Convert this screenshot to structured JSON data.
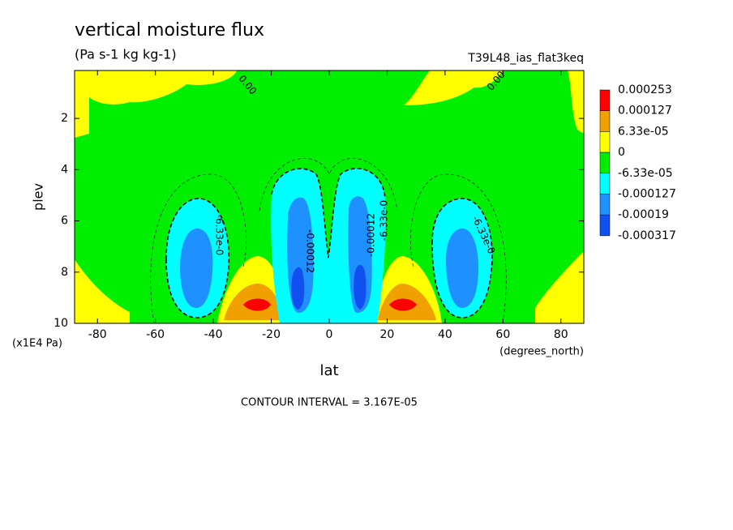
{
  "chart_data": {
    "type": "contour",
    "title": "vertical moisture flux",
    "subtitle": "(Pa s-1 kg kg-1)",
    "run_label": "T39L48_ias_flat3keq",
    "x_label": "lat",
    "x_unit": "(degrees_north)",
    "y_label": "plev",
    "y_unit": "(x1E4 Pa)",
    "xlim": [
      -87.9,
      87.9
    ],
    "xticks": [
      -80,
      -60,
      -40,
      -20,
      0,
      20,
      40,
      60,
      80
    ],
    "ylim": [
      0.13,
      10
    ],
    "y_inverted": true,
    "yticks": [
      2,
      4,
      6,
      8,
      10
    ],
    "colorbar": {
      "levels": [
        0.000253,
        0.000127,
        {
          "value": 6.33e-05,
          "label": "6.33e-05"
        },
        0,
        {
          "value": -6.33e-05,
          "label": "-6.33e-05"
        },
        -0.000127,
        -0.00019,
        -0.000317
      ],
      "colors": [
        "#ff0000",
        "#f0a000",
        "#ffff00",
        "#00ee00",
        "#00ffff",
        "#1e90ff",
        "#1050f0"
      ]
    },
    "contour_labels": [
      "0.00",
      "0.00",
      "-6.33e-0",
      "-0.00012",
      "-0.00012",
      "-6.33e-0",
      "-6.33e-0"
    ],
    "footer": "CONTOUR INTERVAL = 3.167E-05"
  }
}
